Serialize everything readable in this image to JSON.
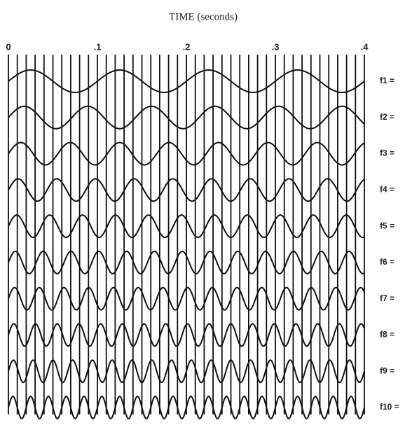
{
  "chart_data": {
    "type": "waves",
    "title": "TIME (seconds)",
    "xlim": [
      0,
      0.4
    ],
    "xticks": [
      0,
      {
        "value": 0.1,
        "label": ".1"
      },
      {
        "value": 0.2,
        "label": ".2"
      },
      {
        "value": 0.3,
        "label": ".3"
      },
      {
        "value": 0.4,
        "label": ".4"
      }
    ],
    "x_gridlines": [
      0,
      0.01,
      0.02,
      0.03,
      0.04,
      0.05,
      0.06,
      0.07,
      0.08,
      0.09,
      0.1,
      0.11,
      0.12,
      0.13,
      0.14,
      0.15,
      0.16,
      0.17,
      0.18,
      0.19,
      0.2,
      0.21,
      0.22,
      0.23,
      0.24,
      0.25,
      0.26,
      0.27,
      0.28,
      0.29,
      0.3,
      0.31,
      0.32,
      0.33,
      0.34,
      0.35,
      0.36,
      0.37,
      0.38,
      0.39,
      0.4
    ],
    "color": "#111111",
    "series": [
      {
        "name": "f1 =",
        "frequency": 10
      },
      {
        "name": "f2 =",
        "frequency": 14
      },
      {
        "name": "f3 =",
        "frequency": 18
      },
      {
        "name": "f4 =",
        "frequency": 23
      },
      {
        "name": "f5 =",
        "frequency": 27
      },
      {
        "name": "f6 =",
        "frequency": 32
      },
      {
        "name": "f7 =",
        "frequency": 36
      },
      {
        "name": "f8 =",
        "frequency": 41
      },
      {
        "name": "f9 =",
        "frequency": 45
      },
      {
        "name": "f10 =",
        "frequency": 50
      }
    ]
  }
}
